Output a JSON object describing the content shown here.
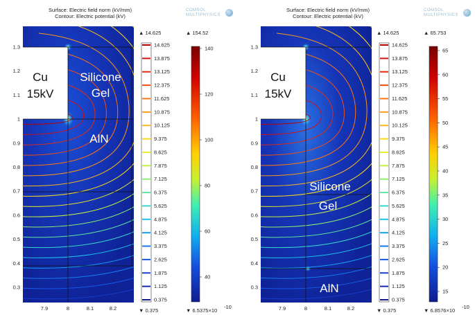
{
  "panels": [
    {
      "id": "left",
      "title_line1": "Surface: Electric field norm (kV/mm)",
      "title_line2": "Contour: Electric potential (kV)",
      "logo_text": "COMSOL MULTIPHYSICS",
      "region_labels": {
        "cu_line1": "Cu",
        "cu_line2": "15kV",
        "gel_line1": "Silicone",
        "gel_line2": "Gel",
        "aln": "AlN"
      },
      "x_ticks": [
        "7.9",
        "8",
        "8.1",
        "8.2"
      ],
      "y_ticks": [
        "1.3",
        "1.2",
        "1.1",
        "1",
        "0.9",
        "0.8",
        "0.7",
        "0.6",
        "0.5",
        "0.4",
        "0.3"
      ],
      "contour_legend": {
        "max_label": "▲ 14.625",
        "min_label": "▼ 0.375",
        "levels": [
          "14.625",
          "13.875",
          "13.125",
          "12.375",
          "11.625",
          "10.875",
          "10.125",
          "9.375",
          "8.625",
          "7.875",
          "7.125",
          "6.375",
          "5.625",
          "4.875",
          "4.125",
          "3.375",
          "2.625",
          "1.875",
          "1.125",
          "0.375"
        ],
        "colors": [
          "#b80000",
          "#d41010",
          "#e42a10",
          "#f04e10",
          "#f87414",
          "#fc9818",
          "#fcb81c",
          "#f8d81c",
          "#e8ec28",
          "#c4f040",
          "#8ef070",
          "#5ee8a0",
          "#36d8cc",
          "#1cc4ec",
          "#14a0f0",
          "#147cf0",
          "#1658e6",
          "#183ccc",
          "#1828ac",
          "#141888"
        ]
      },
      "surface_legend": {
        "max_label": "▲ 154.52",
        "min_label": "▼ 6.5375×10",
        "min_exponent": "-10",
        "ticks": [
          "140",
          "120",
          "100",
          "80",
          "60",
          "40"
        ]
      }
    },
    {
      "id": "right",
      "title_line1": "Surface: Electric field norm (kV/mm)",
      "title_line2": "Contour: Electric potential (kV)",
      "logo_text": "COMSOL MULTIPHYSICS",
      "region_labels": {
        "cu_line1": "Cu",
        "cu_line2": "15kV",
        "gel_line1": "Silicone",
        "gel_line2": "Gel",
        "aln": "AlN"
      },
      "x_ticks": [
        "7.9",
        "8",
        "8.1",
        "8.2"
      ],
      "y_ticks": [
        "1.3",
        "1.2",
        "1.1",
        "1",
        "0.9",
        "0.8",
        "0.7",
        "0.6",
        "0.5",
        "0.4",
        "0.3"
      ],
      "contour_legend": {
        "max_label": "▲ 14.625",
        "min_label": "▼ 0.375",
        "levels": [
          "14.625",
          "13.875",
          "13.125",
          "12.375",
          "11.625",
          "10.875",
          "10.125",
          "9.375",
          "8.625",
          "7.875",
          "7.125",
          "6.375",
          "5.625",
          "4.875",
          "4.125",
          "3.375",
          "2.625",
          "1.875",
          "1.125",
          "0.375"
        ],
        "colors": [
          "#b80000",
          "#d41010",
          "#e42a10",
          "#f04e10",
          "#f87414",
          "#fc9818",
          "#fcb81c",
          "#f8d81c",
          "#e8ec28",
          "#c4f040",
          "#8ef070",
          "#5ee8a0",
          "#36d8cc",
          "#1cc4ec",
          "#14a0f0",
          "#147cf0",
          "#1658e6",
          "#183ccc",
          "#1828ac",
          "#141888"
        ]
      },
      "surface_legend": {
        "max_label": "▲ 65.753",
        "min_label": "▼ 6.8576×10",
        "min_exponent": "-10",
        "ticks": [
          "65",
          "60",
          "55",
          "50",
          "45",
          "40",
          "35",
          "30",
          "25",
          "20",
          "15"
        ]
      }
    }
  ]
}
